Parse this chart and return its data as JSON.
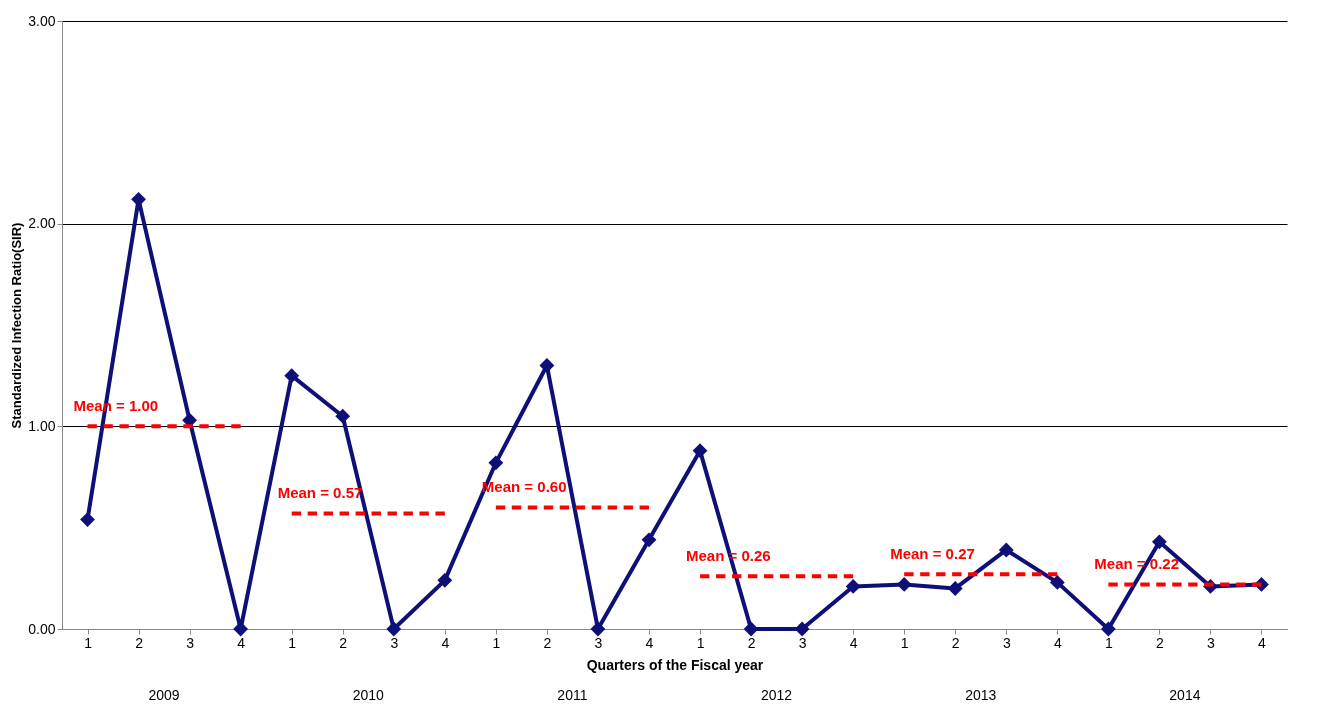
{
  "chart_data": {
    "type": "line",
    "xlabel": "Quarters of the Fiscal year",
    "ylabel": "Standardized Infection Ratio(SIR)",
    "categories": [
      "1",
      "2",
      "3",
      "4",
      "1",
      "2",
      "3",
      "4",
      "1",
      "2",
      "3",
      "4",
      "1",
      "2",
      "3",
      "4",
      "1",
      "2",
      "3",
      "4",
      "1",
      "2",
      "3",
      "4"
    ],
    "series": [
      {
        "color": "#0f0f78",
        "values": [
          0.54,
          2.12,
          1.03,
          0,
          1.25,
          1.05,
          0,
          0.24,
          0.82,
          1.3,
          0,
          0.44,
          0.88,
          0,
          0,
          0.21,
          0.22,
          0.2,
          0.39,
          0.23,
          0,
          0.43,
          0.21,
          0.22
        ]
      },
      {
        "name": "Mean = 1.00",
        "color": "#ff0000",
        "marker": "none",
        "line_style": "dashed",
        "values": [
          1,
          1,
          1,
          1,
          null,
          null,
          null,
          null,
          null,
          null,
          null,
          null,
          null,
          null,
          null,
          null,
          null,
          null,
          null,
          null,
          null,
          null,
          null,
          null
        ]
      },
      {
        "name": "Mean = 0.57",
        "color": "#ff0000",
        "marker": "none",
        "line_style": "dashed",
        "values": [
          null,
          null,
          null,
          null,
          0.57,
          0.57,
          0.57,
          0.57,
          null,
          null,
          null,
          null,
          null,
          null,
          null,
          null,
          null,
          null,
          null,
          null,
          null,
          null,
          null,
          null
        ]
      },
      {
        "name": "Mean = 0.60",
        "color": "#ff0000",
        "marker": "none",
        "line_style": "dashed",
        "values": [
          null,
          null,
          null,
          null,
          null,
          null,
          null,
          null,
          0.6,
          0.6,
          0.6,
          0.6,
          null,
          null,
          null,
          null,
          null,
          null,
          null,
          null,
          null,
          null,
          null,
          null
        ]
      },
      {
        "name": "Mean = 0.26",
        "color": "#ff0000",
        "marker": "none",
        "line_style": "dashed",
        "values": [
          null,
          null,
          null,
          null,
          null,
          null,
          null,
          null,
          null,
          null,
          null,
          null,
          0.26,
          0.26,
          0.26,
          0.26,
          null,
          null,
          null,
          null,
          null,
          null,
          null,
          null
        ]
      },
      {
        "name": "Mean = 0.27",
        "color": "#ff0000",
        "marker": "none",
        "line_style": "dashed",
        "values": [
          null,
          null,
          null,
          null,
          null,
          null,
          null,
          null,
          null,
          null,
          null,
          null,
          null,
          null,
          null,
          null,
          0.27,
          0.27,
          0.27,
          0.27,
          null,
          null,
          null,
          null
        ]
      },
      {
        "name": "Mean = 0.22",
        "color": "#ff0000",
        "marker": "none",
        "line_style": "dashed",
        "values": [
          null,
          null,
          null,
          null,
          null,
          null,
          null,
          null,
          null,
          null,
          null,
          null,
          null,
          null,
          null,
          null,
          null,
          null,
          null,
          null,
          0.22,
          0.22,
          0.22,
          0.22
        ]
      }
    ],
    "annotations": [
      "2009",
      "2010",
      "2011",
      "2012",
      "2013",
      "2014"
    ],
    "ylim": [
      0,
      3
    ],
    "yticks": [
      {
        "value": 0,
        "label": "0.00"
      },
      {
        "value": 1,
        "label": "1.00"
      },
      {
        "value": 2,
        "label": "2.00"
      },
      {
        "value": 3,
        "label": "3.00"
      }
    ],
    "grid": "y",
    "marker": "diamond",
    "line_style": "solid"
  }
}
